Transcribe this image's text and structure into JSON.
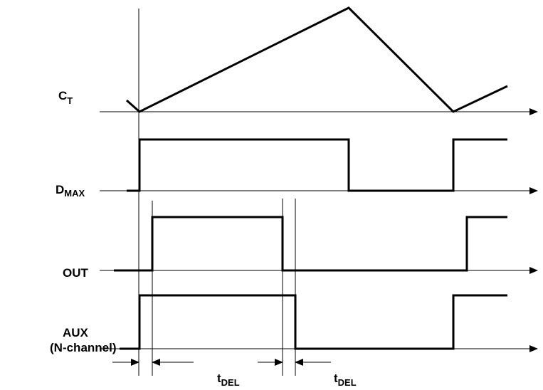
{
  "signals": {
    "ct": {
      "main": "C",
      "sub": "T"
    },
    "dmax": {
      "main": "D",
      "sub": "MAX"
    },
    "out": {
      "label": "OUT"
    },
    "aux": {
      "line1": "AUX",
      "line2": "(N-channel)"
    }
  },
  "timing": {
    "tdel_1": {
      "main": "t",
      "sub": "DEL"
    },
    "tdel_2": {
      "main": "t",
      "sub": "DEL"
    }
  }
}
